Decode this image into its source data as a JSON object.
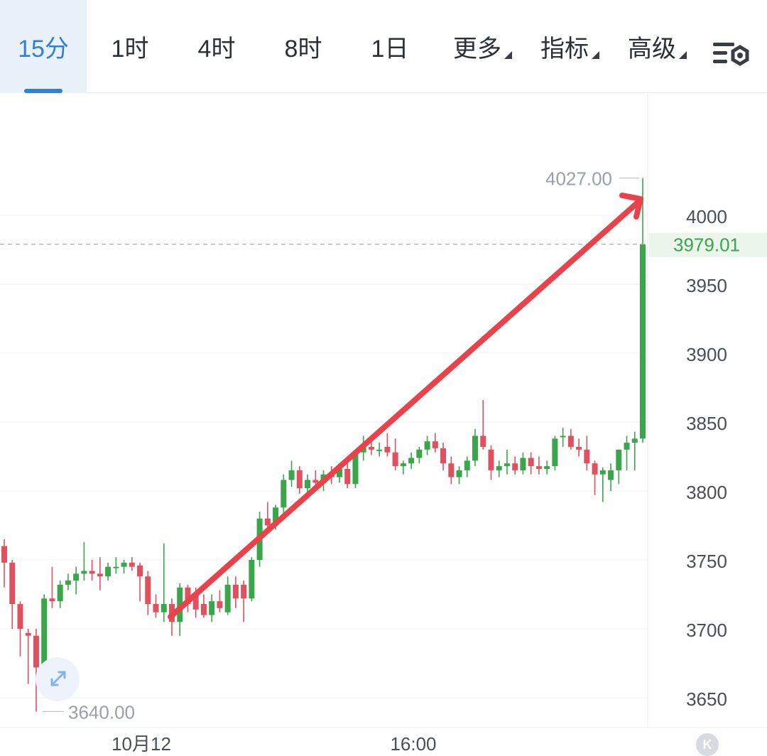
{
  "toolbar": {
    "intervals": [
      "15分",
      "1时",
      "4时",
      "8时",
      "1日"
    ],
    "active_interval": "15分",
    "more_label": "更多",
    "indicators_label": "指标",
    "advanced_label": "高级"
  },
  "colors": {
    "up": "#3aa54a",
    "down": "#e0505e",
    "accent": "#2f80d8",
    "annotation": "#e8434b"
  },
  "chart_data": {
    "type": "candlestick",
    "ylim": [
      3620,
      4070
    ],
    "y_ticks": [
      3650,
      3700,
      3750,
      3800,
      3850,
      3900,
      3950,
      4000
    ],
    "x_ticks": [
      "10月12",
      "16:00"
    ],
    "current_price": "3979.01",
    "high_label": "4027.00",
    "low_label": "3640.00",
    "annotation": "arrow-up",
    "candles": [
      [
        3760,
        3765,
        3730,
        3748
      ],
      [
        3748,
        3750,
        3700,
        3718
      ],
      [
        3718,
        3720,
        3680,
        3700
      ],
      [
        3697,
        3700,
        3660,
        3695
      ],
      [
        3695,
        3700,
        3640,
        3672
      ],
      [
        3672,
        3725,
        3665,
        3722
      ],
      [
        3722,
        3745,
        3715,
        3720
      ],
      [
        3720,
        3735,
        3715,
        3732
      ],
      [
        3732,
        3740,
        3728,
        3735
      ],
      [
        3735,
        3745,
        3725,
        3740
      ],
      [
        3740,
        3763,
        3735,
        3742
      ],
      [
        3742,
        3750,
        3735,
        3740
      ],
      [
        3740,
        3752,
        3728,
        3738
      ],
      [
        3738,
        3748,
        3735,
        3745
      ],
      [
        3745,
        3752,
        3740,
        3745
      ],
      [
        3745,
        3750,
        3740,
        3748
      ],
      [
        3748,
        3752,
        3742,
        3745
      ],
      [
        3746,
        3748,
        3720,
        3738
      ],
      [
        3738,
        3742,
        3710,
        3718
      ],
      [
        3718,
        3725,
        3708,
        3712
      ],
      [
        3712,
        3762,
        3705,
        3718
      ],
      [
        3718,
        3722,
        3695,
        3705
      ],
      [
        3705,
        3733,
        3695,
        3730
      ],
      [
        3730,
        3732,
        3712,
        3718
      ],
      [
        3725,
        3730,
        3708,
        3714
      ],
      [
        3718,
        3725,
        3708,
        3710
      ],
      [
        3710,
        3725,
        3705,
        3720
      ],
      [
        3720,
        3728,
        3712,
        3715
      ],
      [
        3712,
        3738,
        3710,
        3732
      ],
      [
        3732,
        3738,
        3715,
        3722
      ],
      [
        3732,
        3735,
        3705,
        3722
      ],
      [
        3722,
        3752,
        3720,
        3750
      ],
      [
        3750,
        3785,
        3745,
        3780
      ],
      [
        3780,
        3792,
        3770,
        3775
      ],
      [
        3775,
        3790,
        3772,
        3788
      ],
      [
        3788,
        3812,
        3783,
        3808
      ],
      [
        3808,
        3822,
        3803,
        3815
      ],
      [
        3815,
        3818,
        3798,
        3802
      ],
      [
        3802,
        3812,
        3798,
        3808
      ],
      [
        3808,
        3815,
        3800,
        3806
      ],
      [
        3806,
        3815,
        3800,
        3812
      ],
      [
        3812,
        3818,
        3805,
        3810
      ],
      [
        3810,
        3820,
        3806,
        3816
      ],
      [
        3816,
        3820,
        3802,
        3805
      ],
      [
        3805,
        3830,
        3802,
        3828
      ],
      [
        3828,
        3840,
        3822,
        3832
      ],
      [
        3832,
        3838,
        3826,
        3830
      ],
      [
        3830,
        3835,
        3825,
        3830
      ],
      [
        3832,
        3842,
        3825,
        3828
      ],
      [
        3828,
        3838,
        3815,
        3818
      ],
      [
        3818,
        3822,
        3812,
        3820
      ],
      [
        3820,
        3828,
        3816,
        3824
      ],
      [
        3824,
        3832,
        3820,
        3830
      ],
      [
        3830,
        3840,
        3826,
        3836
      ],
      [
        3836,
        3842,
        3828,
        3831
      ],
      [
        3831,
        3835,
        3815,
        3820
      ],
      [
        3820,
        3825,
        3805,
        3810
      ],
      [
        3810,
        3818,
        3805,
        3815
      ],
      [
        3815,
        3825,
        3810,
        3822
      ],
      [
        3822,
        3845,
        3818,
        3840
      ],
      [
        3840,
        3866,
        3830,
        3832
      ],
      [
        3830,
        3833,
        3808,
        3815
      ],
      [
        3815,
        3822,
        3810,
        3818
      ],
      [
        3818,
        3830,
        3812,
        3820
      ],
      [
        3820,
        3825,
        3812,
        3815
      ],
      [
        3815,
        3828,
        3812,
        3824
      ],
      [
        3824,
        3828,
        3812,
        3818
      ],
      [
        3818,
        3825,
        3812,
        3816
      ],
      [
        3816,
        3822,
        3812,
        3818
      ],
      [
        3818,
        3840,
        3815,
        3838
      ],
      [
        3840,
        3846,
        3832,
        3840
      ],
      [
        3840,
        3845,
        3830,
        3832
      ],
      [
        3832,
        3838,
        3825,
        3830
      ],
      [
        3830,
        3840,
        3815,
        3820
      ],
      [
        3820,
        3822,
        3797,
        3812
      ],
      [
        3812,
        3817,
        3792,
        3815
      ],
      [
        3808,
        3820,
        3800,
        3815
      ],
      [
        3815,
        3830,
        3805,
        3830
      ],
      [
        3830,
        3840,
        3815,
        3835
      ],
      [
        3835,
        3843,
        3815,
        3838
      ],
      [
        3838,
        4027,
        3835,
        3979
      ]
    ]
  }
}
